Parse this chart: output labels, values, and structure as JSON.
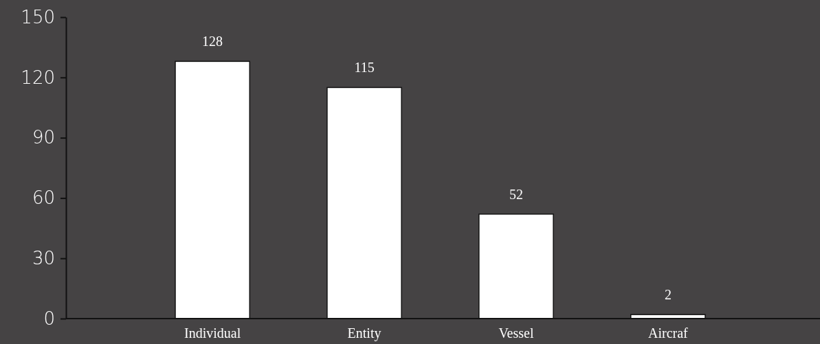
{
  "chart_data": {
    "type": "bar",
    "categories": [
      "Individual",
      "Entity",
      "Vessel",
      "Aircraf"
    ],
    "values": [
      128,
      115,
      52,
      2
    ],
    "color": "#ffffff",
    "ylim": [
      0,
      150
    ],
    "yticks": [
      0,
      30,
      60,
      90,
      120,
      150
    ],
    "data_labels": true,
    "grid": false
  }
}
